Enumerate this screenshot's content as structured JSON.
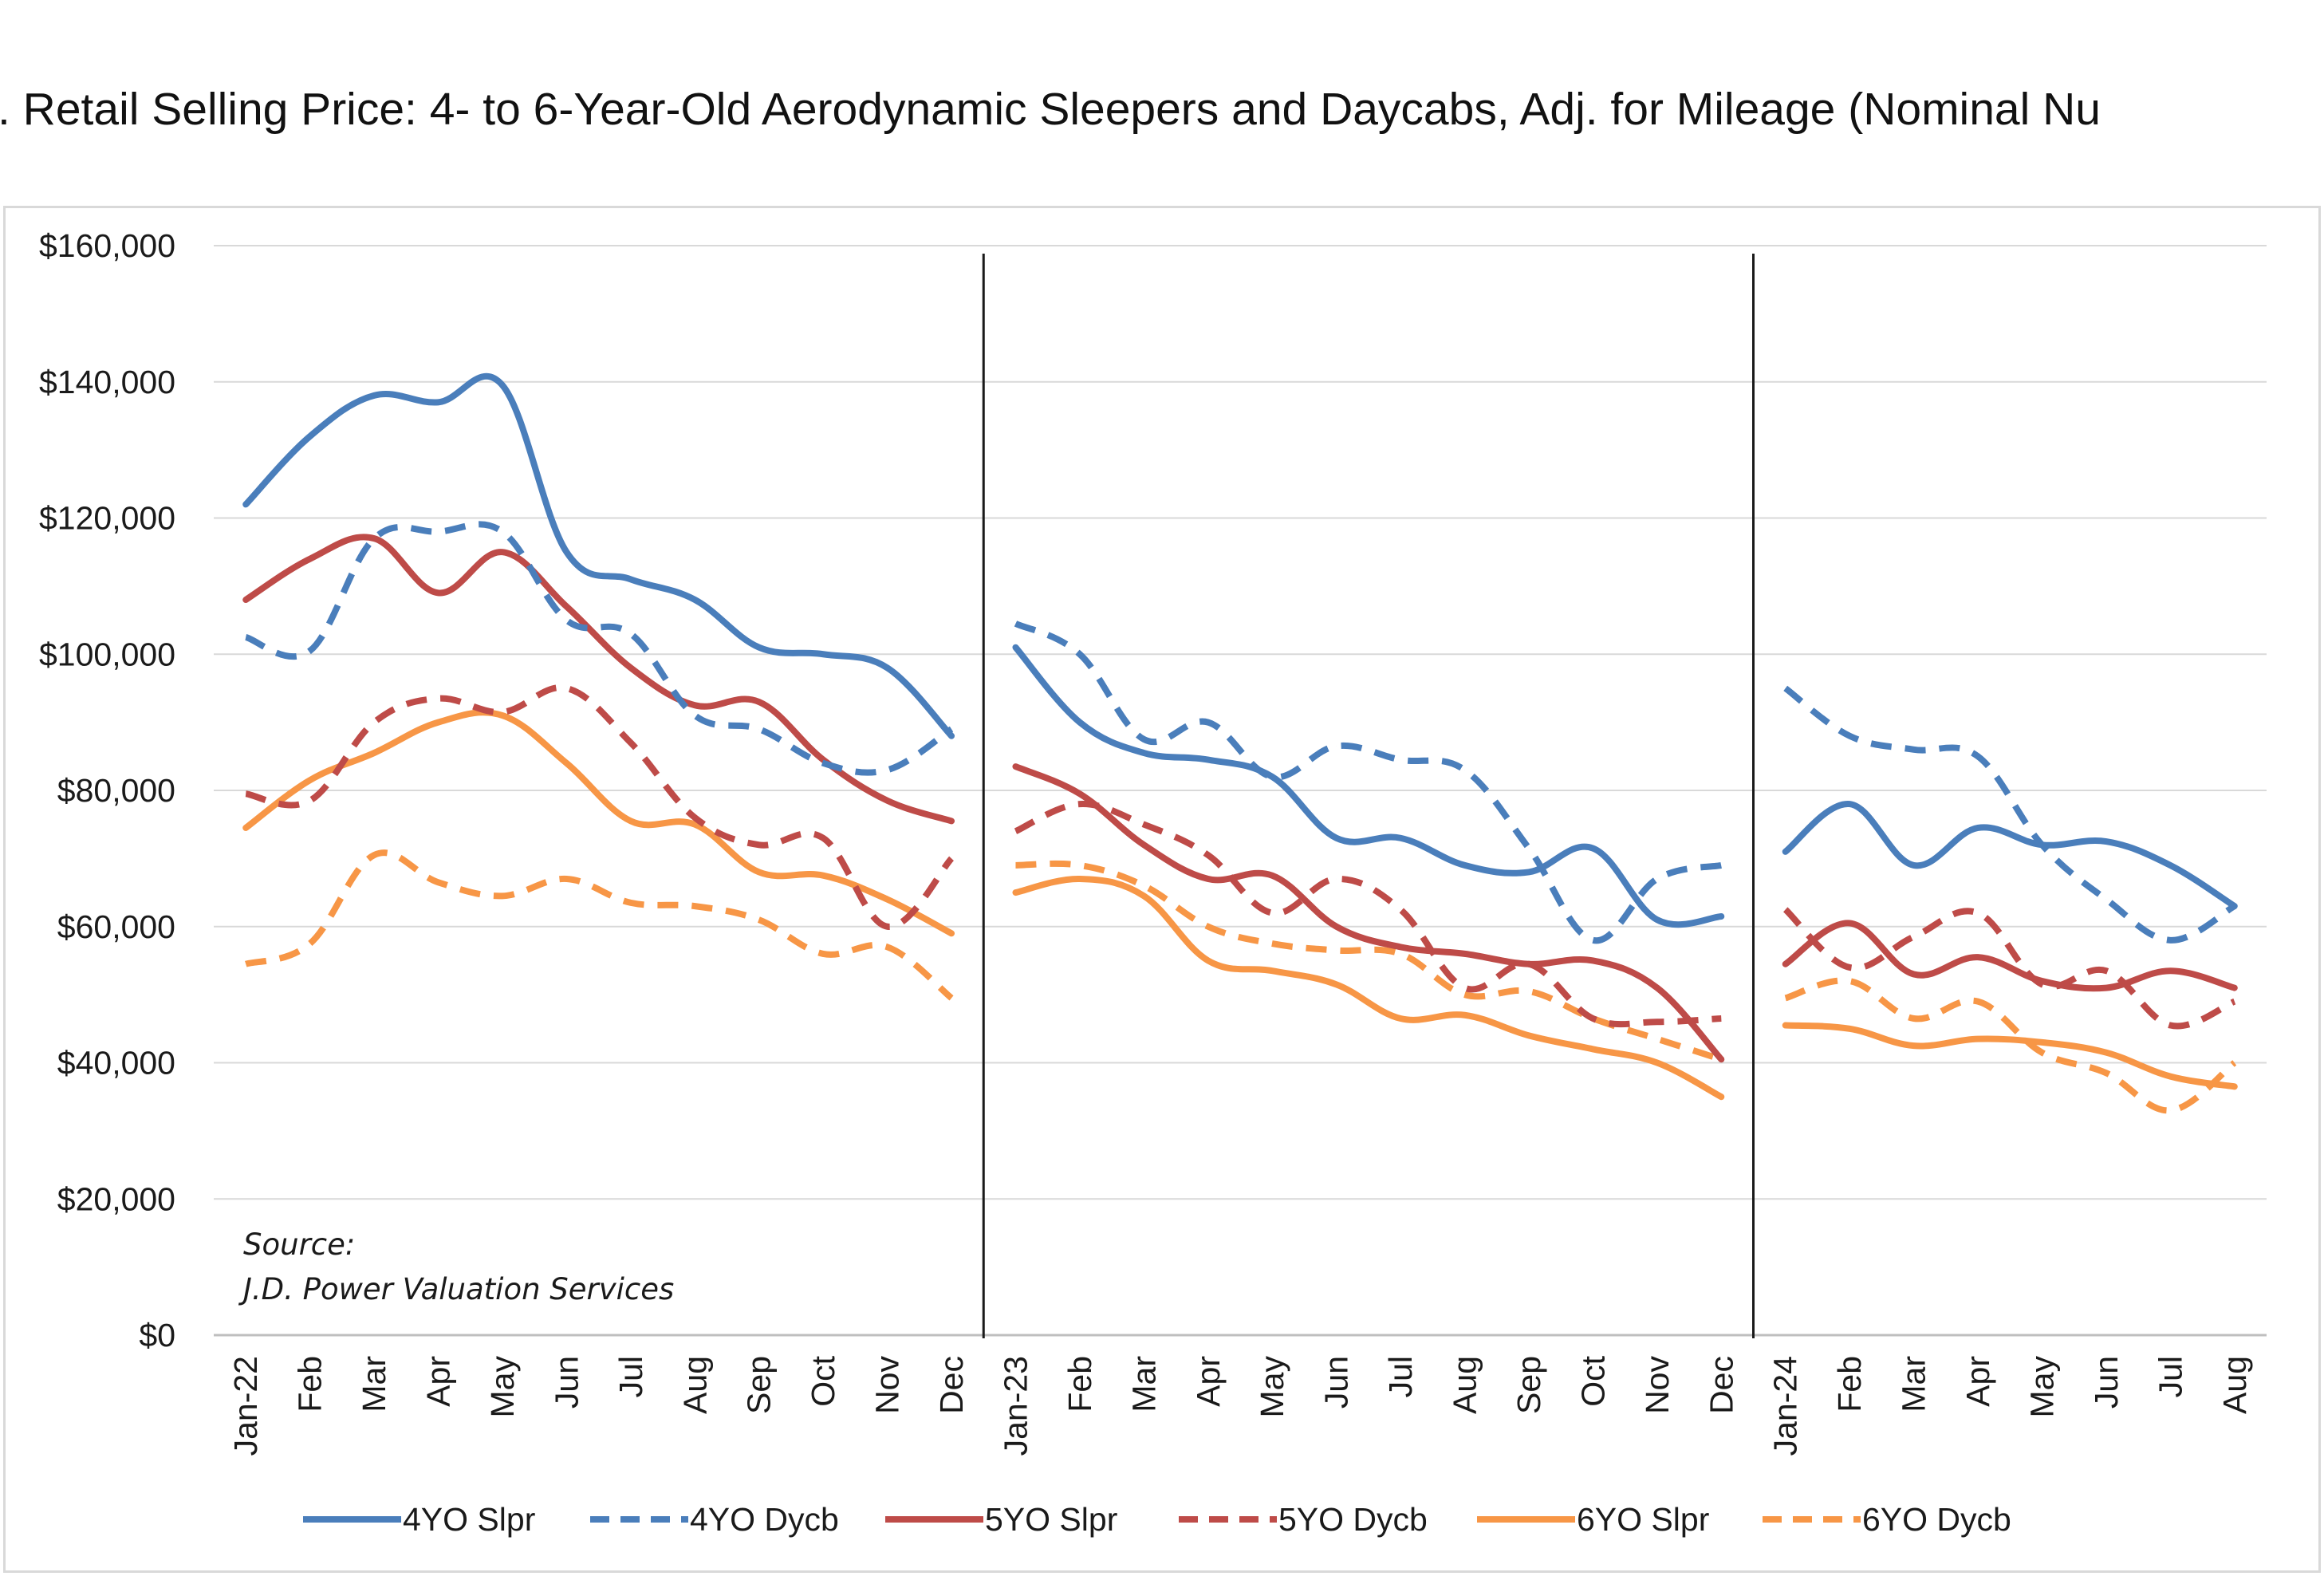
{
  "title": ". Retail Selling Price: 4- to 6-Year-Old Aerodynamic Sleepers and Daycabs, Adj. for Mileage (Nominal Nu",
  "source": {
    "line1": "Source:",
    "line2": "J.D. Power Valuation Services"
  },
  "chart_data": {
    "type": "line",
    "title": ". Retail Selling Price: 4- to 6-Year-Old Aerodynamic Sleepers and Daycabs, Adj. for Mileage (Nominal Nu",
    "xlabel": "",
    "ylabel": "",
    "ylim": [
      0,
      160000
    ],
    "yticks": [
      "$0",
      "$20,000",
      "$40,000",
      "$60,000",
      "$80,000",
      "$100,000",
      "$120,000",
      "$140,000",
      "$160,000"
    ],
    "grid": "horizontal",
    "legend_position": "bottom",
    "segments": [
      {
        "categories": [
          "Jan-22",
          "Feb",
          "Mar",
          "Apr",
          "May",
          "Jun",
          "Jul",
          "Aug",
          "Sep",
          "Oct",
          "Nov",
          "Dec"
        ]
      },
      {
        "categories": [
          "Jan-23",
          "Feb",
          "Mar",
          "Apr",
          "May",
          "Jun",
          "Jul",
          "Aug",
          "Sep",
          "Oct",
          "Nov",
          "Dec"
        ]
      },
      {
        "categories": [
          "Jan-24",
          "Feb",
          "Mar",
          "Apr",
          "May",
          "Jun",
          "Jul",
          "Aug"
        ]
      }
    ],
    "series": [
      {
        "name": "4YO Slpr",
        "color": "#4a7ebb",
        "dash": "solid",
        "values": [
          [
            122000,
            132000,
            138000,
            137000,
            139500,
            115000,
            111000,
            108000,
            101000,
            100000,
            98000,
            88000
          ],
          [
            101000,
            90000,
            85500,
            84500,
            82000,
            73000,
            73000,
            69000,
            68000,
            71500,
            61000,
            61500
          ],
          [
            71000,
            78000,
            69000,
            74500,
            72000,
            72500,
            69000,
            63000
          ]
        ]
      },
      {
        "name": "4YO Dycb",
        "color": "#4a7ebb",
        "dash": "dashed",
        "values": [
          [
            102500,
            100500,
            117000,
            118000,
            118000,
            105000,
            103000,
            91000,
            89000,
            84000,
            83000,
            89000
          ],
          [
            104500,
            100000,
            87500,
            90000,
            82000,
            86500,
            84500,
            83000,
            71500,
            58000,
            67000,
            69000
          ],
          [
            95000,
            88000,
            86000,
            85000,
            72000,
            64000,
            58000,
            63000
          ]
        ]
      },
      {
        "name": "5YO Slpr",
        "color": "#be4b48",
        "dash": "solid",
        "values": [
          [
            108000,
            114000,
            117000,
            109000,
            115000,
            107000,
            98000,
            92500,
            93000,
            84500,
            78500,
            75500
          ],
          [
            83500,
            79500,
            72000,
            67000,
            67500,
            60000,
            57000,
            56000,
            54500,
            55000,
            51000,
            40500
          ],
          [
            54500,
            60500,
            53000,
            55500,
            52000,
            51000,
            53500,
            51000
          ]
        ]
      },
      {
        "name": "5YO Dycb",
        "color": "#be4b48",
        "dash": "dashed",
        "values": [
          [
            79500,
            78500,
            90000,
            93500,
            91500,
            95000,
            87000,
            76000,
            72000,
            73000,
            60000,
            70000
          ],
          [
            74000,
            78000,
            75000,
            70500,
            62000,
            67000,
            62500,
            51000,
            54500,
            46500,
            46000,
            46500
          ],
          [
            62500,
            54000,
            58500,
            62000,
            51500,
            53500,
            45500,
            49000
          ]
        ]
      },
      {
        "name": "6YO Slpr",
        "color": "#f79646",
        "dash": "solid",
        "values": [
          [
            74500,
            81500,
            85500,
            90000,
            91000,
            84000,
            75500,
            75000,
            68000,
            67500,
            64000,
            59000
          ],
          [
            65000,
            67000,
            64500,
            55000,
            53500,
            51500,
            46500,
            47000,
            44000,
            42000,
            40000,
            35000
          ],
          [
            45500,
            45000,
            42500,
            43500,
            43000,
            41500,
            38000,
            36500
          ]
        ]
      },
      {
        "name": "6YO Dycb",
        "color": "#f79646",
        "dash": "dashed",
        "values": [
          [
            54500,
            57500,
            70500,
            66500,
            64500,
            67000,
            63500,
            63000,
            61000,
            56000,
            57000,
            49500
          ],
          [
            69000,
            69000,
            66000,
            60000,
            57500,
            56500,
            56000,
            50000,
            50500,
            46500,
            43500,
            40500
          ],
          [
            49500,
            52000,
            46500,
            49000,
            41500,
            38500,
            33000,
            40000
          ]
        ]
      }
    ]
  }
}
